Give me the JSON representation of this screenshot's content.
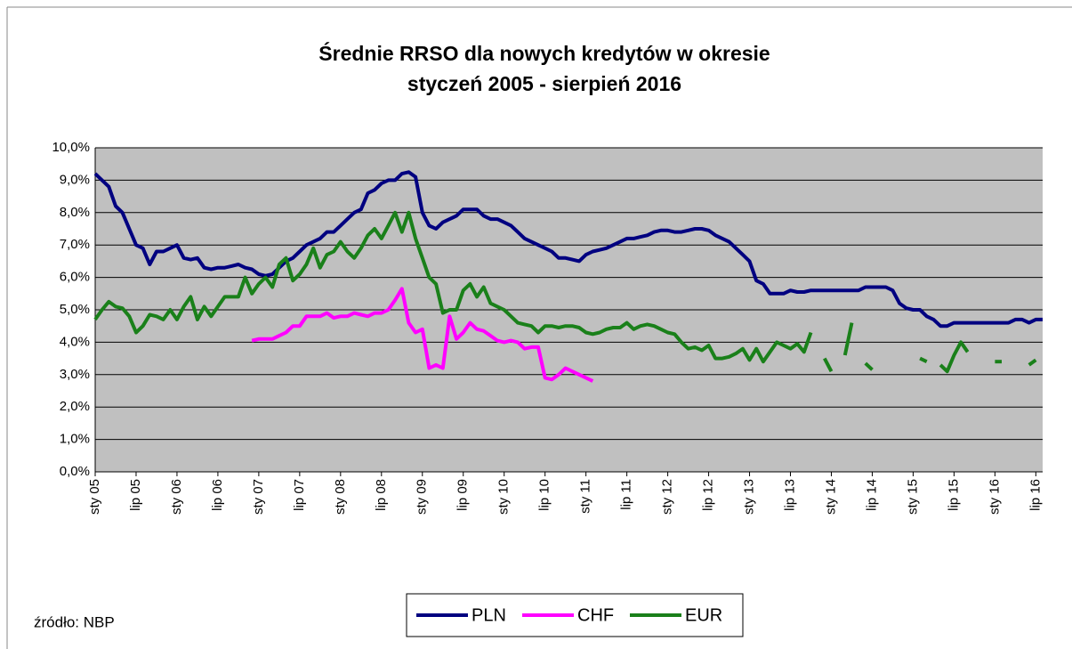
{
  "chart_data": {
    "type": "line",
    "title": [
      "Średnie RRSO dla nowych kredytów w okresie",
      "styczeń 2005 - sierpień 2016"
    ],
    "source": "źródło: NBP",
    "categories": [
      "sty 05",
      null,
      null,
      null,
      null,
      null,
      "lip 05",
      null,
      null,
      null,
      null,
      null,
      "sty 06",
      null,
      null,
      null,
      null,
      null,
      "lip 06",
      null,
      null,
      null,
      null,
      null,
      "sty 07",
      null,
      null,
      null,
      null,
      null,
      "lip 07",
      null,
      null,
      null,
      null,
      null,
      "sty 08",
      null,
      null,
      null,
      null,
      null,
      "lip 08",
      null,
      null,
      null,
      null,
      null,
      "sty 09",
      null,
      null,
      null,
      null,
      null,
      "lip 09",
      null,
      null,
      null,
      null,
      null,
      "sty 10",
      null,
      null,
      null,
      null,
      null,
      "lip 10",
      null,
      null,
      null,
      null,
      null,
      "sty 11",
      null,
      null,
      null,
      null,
      null,
      "lip 11",
      null,
      null,
      null,
      null,
      null,
      "sty 12",
      null,
      null,
      null,
      null,
      null,
      "lip 12",
      null,
      null,
      null,
      null,
      null,
      "sty 13",
      null,
      null,
      null,
      null,
      null,
      "lip 13",
      null,
      null,
      null,
      null,
      null,
      "sty 14",
      null,
      null,
      null,
      null,
      null,
      "lip 14",
      null,
      null,
      null,
      null,
      null,
      "sty 15",
      null,
      null,
      null,
      null,
      null,
      "lip 15",
      null,
      null,
      null,
      null,
      null,
      "sty 16",
      null,
      null,
      null,
      null,
      null,
      "lip 16",
      null
    ],
    "ylim": [
      0,
      10
    ],
    "yticks": [
      {
        "value": 0,
        "label": "0,0%"
      },
      {
        "value": 1,
        "label": "1,0%"
      },
      {
        "value": 2,
        "label": "2,0%"
      },
      {
        "value": 3,
        "label": "3,0%"
      },
      {
        "value": 4,
        "label": "4,0%"
      },
      {
        "value": 5,
        "label": "5,0%"
      },
      {
        "value": 6,
        "label": "6,0%"
      },
      {
        "value": 7,
        "label": "7,0%"
      },
      {
        "value": 8,
        "label": "8,0%"
      },
      {
        "value": 9,
        "label": "9,0%"
      },
      {
        "value": 10,
        "label": "10,0%"
      }
    ],
    "grid": true,
    "legend": "bottom",
    "series": [
      {
        "name": "PLN",
        "color": "#000080",
        "values": [
          9.2,
          9.0,
          8.8,
          8.2,
          8.0,
          7.5,
          7.0,
          6.9,
          6.4,
          6.8,
          6.8,
          6.9,
          7.0,
          6.6,
          6.55,
          6.6,
          6.3,
          6.25,
          6.3,
          6.3,
          6.35,
          6.4,
          6.3,
          6.25,
          6.1,
          6.05,
          6.1,
          6.3,
          6.5,
          6.6,
          6.8,
          7.0,
          7.1,
          7.2,
          7.4,
          7.4,
          7.6,
          7.8,
          8.0,
          8.1,
          8.6,
          8.7,
          8.9,
          9.0,
          9.0,
          9.2,
          9.25,
          9.1,
          8.0,
          7.6,
          7.5,
          7.7,
          7.8,
          7.9,
          8.1,
          8.1,
          8.1,
          7.9,
          7.8,
          7.8,
          7.7,
          7.6,
          7.4,
          7.2,
          7.1,
          7.0,
          6.9,
          6.8,
          6.6,
          6.6,
          6.55,
          6.5,
          6.7,
          6.8,
          6.85,
          6.9,
          7.0,
          7.1,
          7.2,
          7.2,
          7.25,
          7.3,
          7.4,
          7.45,
          7.45,
          7.4,
          7.4,
          7.45,
          7.5,
          7.5,
          7.45,
          7.3,
          7.2,
          7.1,
          6.9,
          6.7,
          6.5,
          5.9,
          5.8,
          5.5,
          5.5,
          5.5,
          5.6,
          5.55,
          5.55,
          5.6,
          5.6,
          5.6,
          5.6,
          5.6,
          5.6,
          5.6,
          5.6,
          5.7,
          5.7,
          5.7,
          5.7,
          5.6,
          5.2,
          5.05,
          5.0,
          5.0,
          4.8,
          4.7,
          4.5,
          4.5,
          4.6,
          4.6,
          4.6,
          4.6,
          4.6,
          4.6,
          4.6,
          4.6,
          4.6,
          4.7,
          4.7,
          4.6,
          4.7,
          4.7
        ]
      },
      {
        "name": "CHF",
        "color": "#ff00ff",
        "values": [
          null,
          null,
          null,
          null,
          null,
          null,
          null,
          null,
          null,
          null,
          null,
          null,
          null,
          null,
          null,
          null,
          null,
          null,
          null,
          null,
          null,
          null,
          null,
          4.05,
          4.1,
          4.1,
          4.1,
          4.2,
          4.3,
          4.5,
          4.5,
          4.8,
          4.8,
          4.8,
          4.9,
          4.75,
          4.8,
          4.8,
          4.9,
          4.85,
          4.8,
          4.9,
          4.9,
          5.0,
          5.3,
          5.65,
          4.6,
          4.3,
          4.4,
          3.2,
          3.3,
          3.2,
          4.8,
          4.1,
          4.3,
          4.6,
          4.4,
          4.35,
          4.2,
          4.05,
          4.0,
          4.05,
          4.0,
          3.8,
          3.85,
          3.85,
          2.9,
          2.85,
          3.0,
          3.2,
          3.1,
          3.0,
          2.9,
          2.8,
          null,
          null,
          null,
          null,
          null,
          null,
          null,
          null,
          null,
          null,
          null,
          null,
          null,
          null,
          null,
          null,
          null,
          null,
          null,
          null,
          null,
          null,
          null,
          null,
          null,
          null,
          null,
          null,
          null,
          null,
          null,
          null,
          null,
          null,
          null,
          null,
          null,
          null,
          null,
          null,
          null,
          null,
          null,
          null,
          null,
          null,
          null,
          null,
          null,
          null,
          null,
          null,
          null,
          null,
          null,
          null,
          null,
          null,
          null,
          null,
          null,
          null,
          null,
          null,
          null,
          null
        ]
      },
      {
        "name": "EUR",
        "color": "#1a801a",
        "values": [
          4.7,
          5.0,
          5.25,
          5.1,
          5.05,
          4.8,
          4.3,
          4.5,
          4.85,
          4.8,
          4.7,
          5.0,
          4.7,
          5.1,
          5.4,
          4.7,
          5.1,
          4.8,
          5.1,
          5.4,
          5.4,
          5.4,
          6.0,
          5.5,
          5.8,
          6.0,
          5.7,
          6.4,
          6.6,
          5.9,
          6.1,
          6.4,
          6.9,
          6.3,
          6.7,
          6.8,
          7.1,
          6.8,
          6.6,
          6.9,
          7.3,
          7.5,
          7.2,
          7.6,
          8.0,
          7.4,
          8.0,
          7.2,
          6.6,
          6.0,
          5.8,
          4.9,
          5.0,
          5.0,
          5.6,
          5.8,
          5.4,
          5.7,
          5.2,
          5.1,
          5.0,
          4.8,
          4.6,
          4.55,
          4.5,
          4.3,
          4.5,
          4.5,
          4.45,
          4.5,
          4.5,
          4.45,
          4.3,
          4.25,
          4.3,
          4.4,
          4.45,
          4.45,
          4.6,
          4.4,
          4.5,
          4.55,
          4.5,
          4.4,
          4.3,
          4.25,
          4.0,
          3.8,
          3.85,
          3.75,
          3.9,
          3.5,
          3.5,
          3.55,
          3.65,
          3.8,
          3.45,
          3.8,
          3.4,
          3.7,
          4.0,
          3.9,
          3.8,
          3.95,
          3.7,
          4.3,
          null,
          3.5,
          3.1,
          null,
          3.6,
          4.6,
          null,
          3.35,
          3.15,
          null,
          null,
          null,
          null,
          null,
          null,
          3.5,
          3.4,
          null,
          3.3,
          3.1,
          3.6,
          4.0,
          3.7,
          null,
          null,
          null,
          3.4,
          3.4,
          null,
          null,
          null,
          3.3,
          3.45,
          null
        ]
      }
    ]
  }
}
